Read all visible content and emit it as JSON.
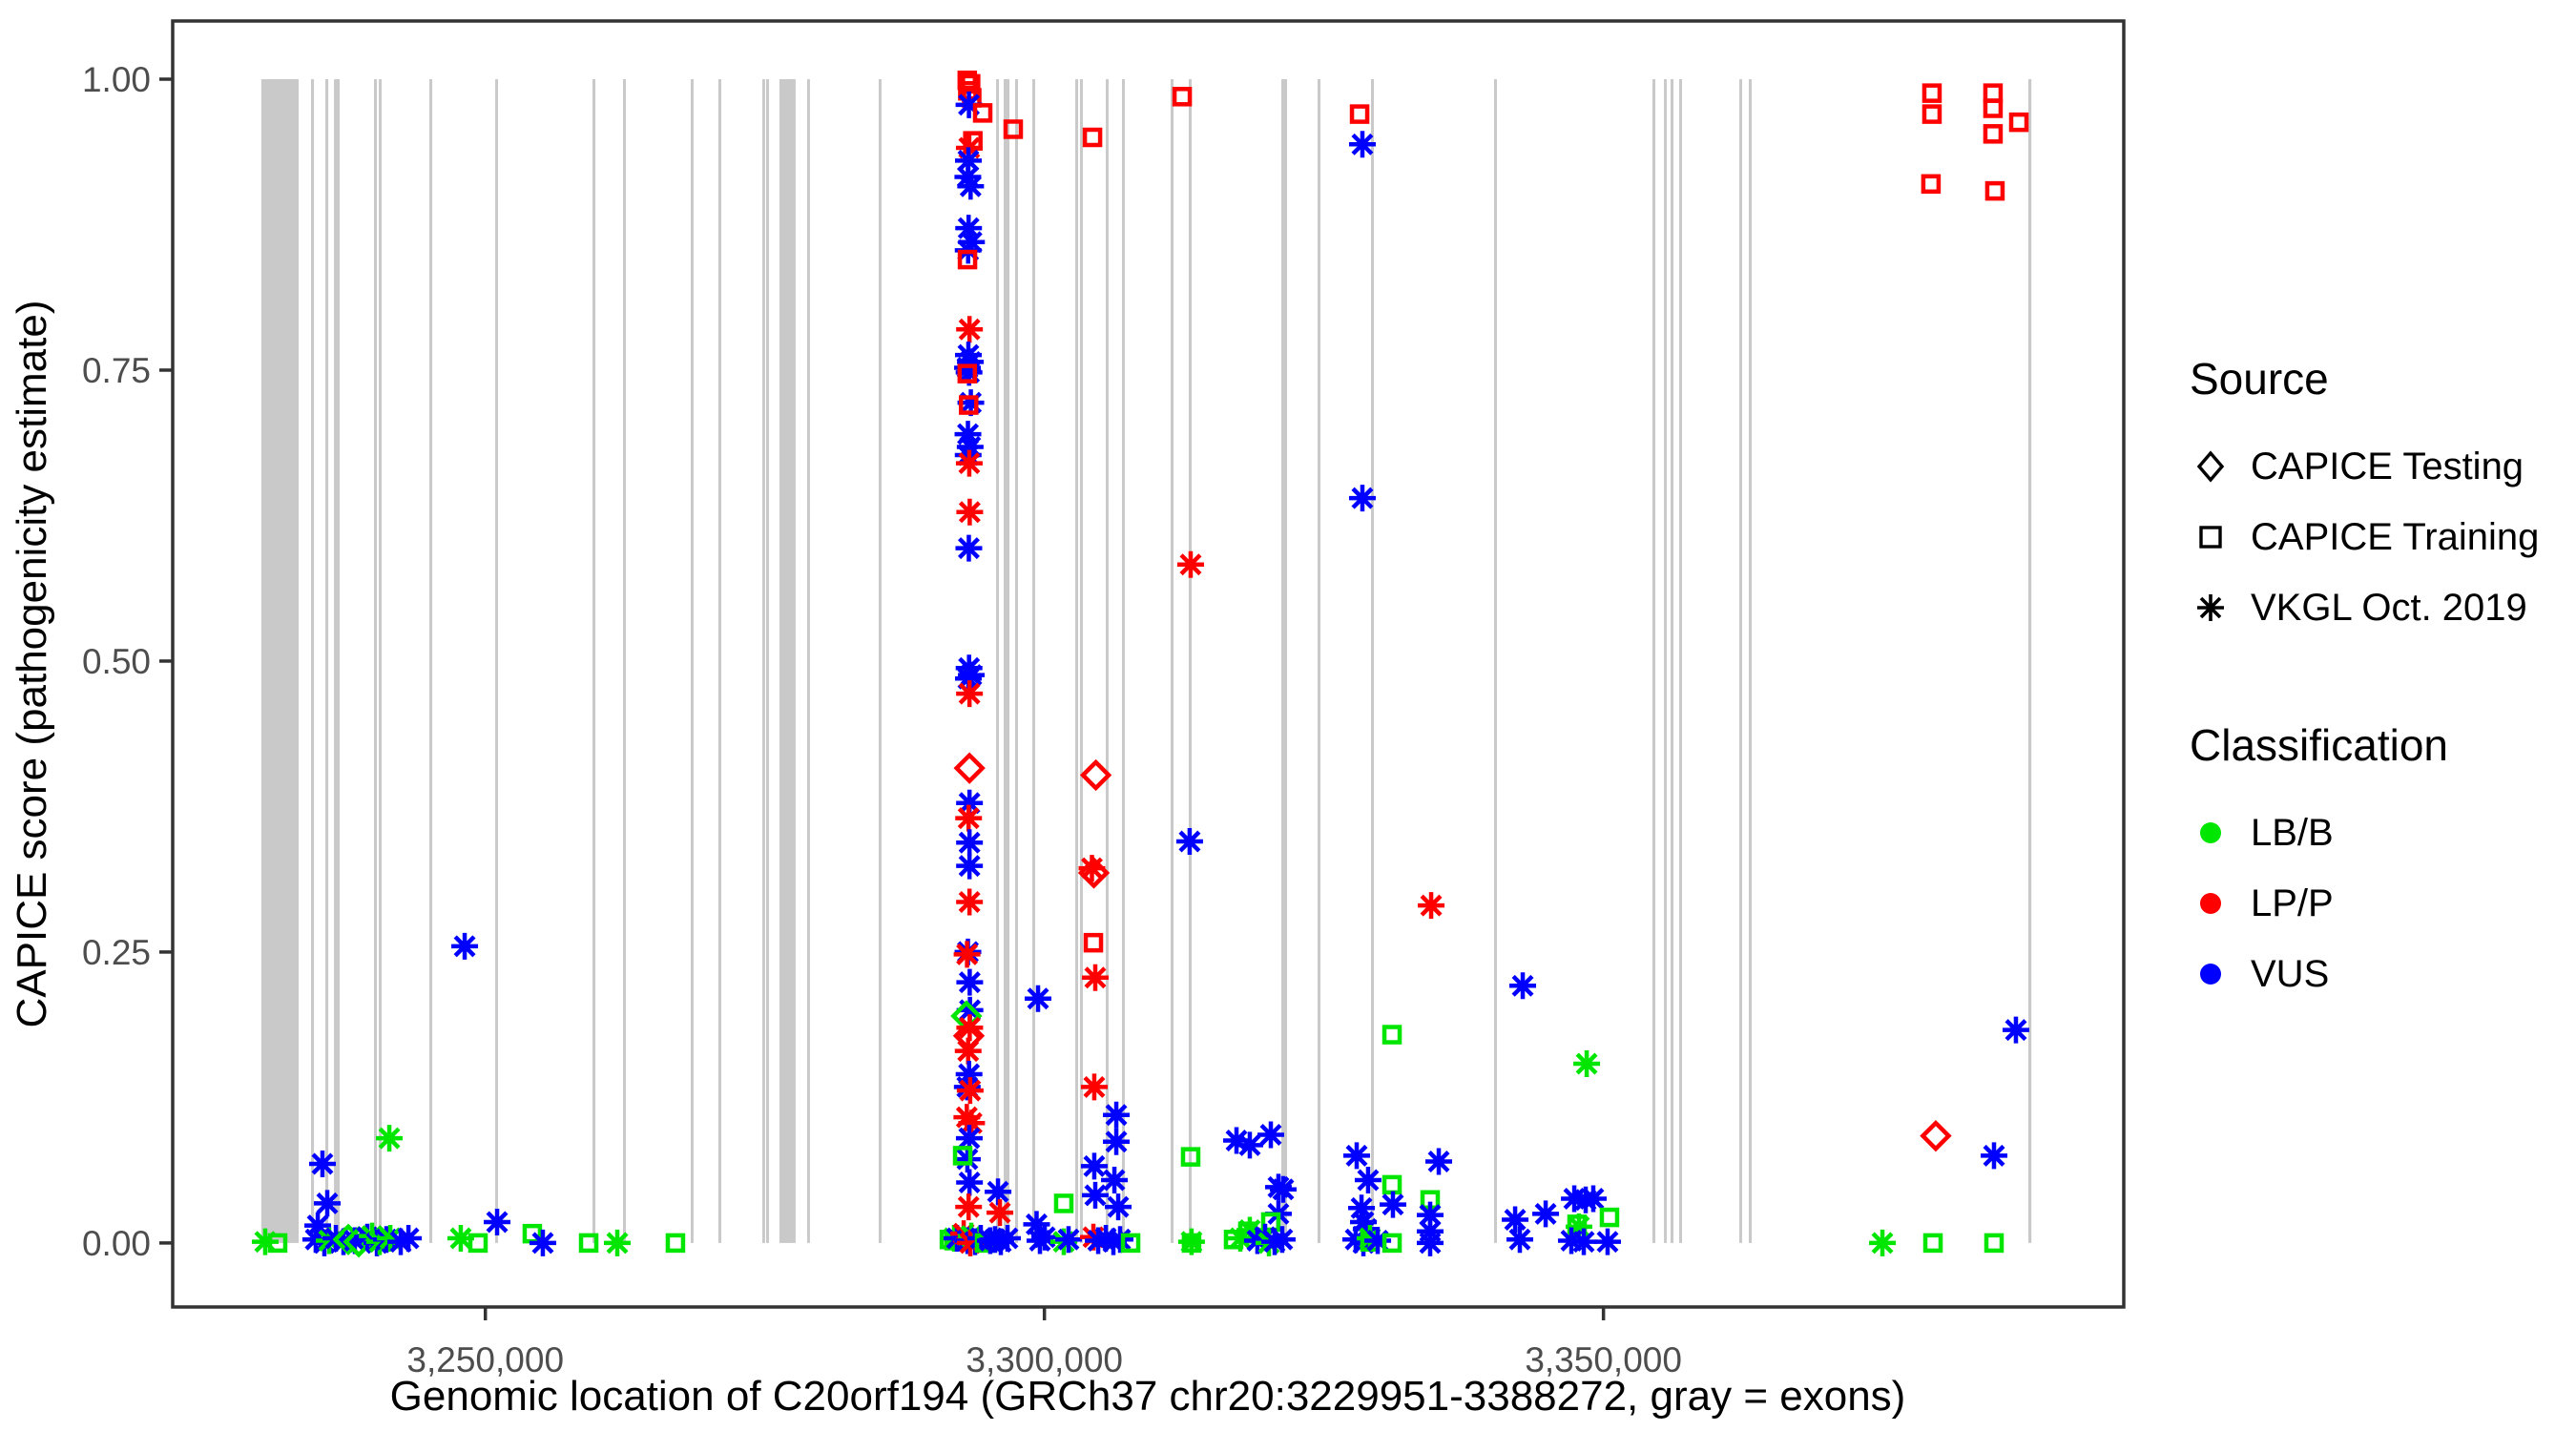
{
  "chart_data": {
    "type": "scatter",
    "x_axis": {
      "label": "Genomic location of C20orf194 (GRCh37 chr20:3229951-3388272, gray = exons)",
      "min": 3222035,
      "max": 3396535,
      "ticks": [
        {
          "value": 3250000,
          "label": "3,250,000"
        },
        {
          "value": 3300000,
          "label": "3,300,000"
        },
        {
          "value": 3350000,
          "label": "3,350,000"
        }
      ]
    },
    "y_axis": {
      "label": "CAPICE score (pathogenicity estimate)",
      "min": -0.055,
      "max": 1.05,
      "ticks": [
        {
          "value": 0.0,
          "label": "0.00"
        },
        {
          "value": 0.25,
          "label": "0.25"
        },
        {
          "value": 0.5,
          "label": "0.50"
        },
        {
          "value": 0.75,
          "label": "0.75"
        },
        {
          "value": 1.0,
          "label": "1.00"
        }
      ]
    },
    "grid": false,
    "legend_position": "right",
    "exon_note": "gray = exons",
    "exons": [
      [
        3229960,
        3233300
      ],
      [
        3234410,
        3234670
      ],
      [
        3235690,
        3235950
      ],
      [
        3236460,
        3236970
      ],
      [
        3240040,
        3240300
      ],
      [
        3240470,
        3240720
      ],
      [
        3244990,
        3245250
      ],
      [
        3250880,
        3251130
      ],
      [
        3259580,
        3259840
      ],
      [
        3262310,
        3262570
      ],
      [
        3268370,
        3268620
      ],
      [
        3270840,
        3271100
      ],
      [
        3274770,
        3275020
      ],
      [
        3275110,
        3275370
      ],
      [
        3276300,
        3277750
      ],
      [
        3278780,
        3279030
      ],
      [
        3285180,
        3285430
      ],
      [
        3295680,
        3295930
      ],
      [
        3296360,
        3296870
      ],
      [
        3297380,
        3297640
      ],
      [
        3298920,
        3299170
      ],
      [
        3302760,
        3303010
      ],
      [
        3303180,
        3303440
      ],
      [
        3305490,
        3305740
      ],
      [
        3306940,
        3307190
      ],
      [
        3311290,
        3311550
      ],
      [
        3312910,
        3313170
      ],
      [
        3321190,
        3321700
      ],
      [
        3324430,
        3324690
      ],
      [
        3329210,
        3329470
      ],
      [
        3340220,
        3340470
      ],
      [
        3354380,
        3354640
      ],
      [
        3355410,
        3355660
      ],
      [
        3356000,
        3356260
      ],
      [
        3356770,
        3357030
      ],
      [
        3362150,
        3362400
      ],
      [
        3363000,
        3363260
      ],
      [
        3388000,
        3388272
      ]
    ],
    "point_encoding": {
      "fields": [
        "genomic_position",
        "capice_score",
        "source",
        "classification"
      ],
      "source_codes": {
        "a": "VKGL Oct. 2019",
        "s": "CAPICE Training",
        "d": "CAPICE Testing"
      },
      "class_codes": {
        "B": "LB/B",
        "P": "LP/P",
        "V": "VUS"
      }
    },
    "points": [
      [
        3230310,
        0.001,
        "a",
        "B"
      ],
      [
        3231420,
        0.0,
        "s",
        "B"
      ],
      [
        3234830,
        0.003,
        "a",
        "V"
      ],
      [
        3235010,
        0.015,
        "a",
        "V"
      ],
      [
        3235430,
        0.068,
        "a",
        "V"
      ],
      [
        3235600,
        0.0,
        "a",
        "V"
      ],
      [
        3235860,
        0.034,
        "a",
        "V"
      ],
      [
        3236030,
        0.002,
        "a",
        "B"
      ],
      [
        3236630,
        0.004,
        "a",
        "V"
      ],
      [
        3237310,
        0.001,
        "a",
        "V"
      ],
      [
        3237740,
        0.003,
        "d",
        "B"
      ],
      [
        3238330,
        0.002,
        "a",
        "V"
      ],
      [
        3238680,
        0.001,
        "d",
        "B"
      ],
      [
        3239440,
        0.005,
        "a",
        "V"
      ],
      [
        3239870,
        0.006,
        "a",
        "B"
      ],
      [
        3240300,
        0.0,
        "a",
        "V"
      ],
      [
        3240550,
        0.001,
        "a",
        "B"
      ],
      [
        3241150,
        0.003,
        "a",
        "V"
      ],
      [
        3241410,
        0.09,
        "a",
        "B"
      ],
      [
        3241500,
        0.004,
        "a",
        "B"
      ],
      [
        3242430,
        0.001,
        "a",
        "V"
      ],
      [
        3243120,
        0.004,
        "a",
        "V"
      ],
      [
        3247800,
        0.004,
        "a",
        "B"
      ],
      [
        3248150,
        0.255,
        "a",
        "V"
      ],
      [
        3249340,
        0.0,
        "s",
        "B"
      ],
      [
        3251050,
        0.018,
        "a",
        "V"
      ],
      [
        3254200,
        0.008,
        "s",
        "B"
      ],
      [
        3255140,
        0.0,
        "a",
        "V"
      ],
      [
        3259240,
        0.0,
        "s",
        "B"
      ],
      [
        3261800,
        0.0,
        "a",
        "B"
      ],
      [
        3267000,
        0.0,
        "s",
        "B"
      ],
      [
        3291920,
        0.002,
        "s",
        "B"
      ],
      [
        3291920,
        0.004,
        "a",
        "B"
      ],
      [
        3293100,
        0.999,
        "s",
        "P"
      ],
      [
        3293400,
        0.996,
        "s",
        "P"
      ],
      [
        3293150,
        0.99,
        "s",
        "P"
      ],
      [
        3293500,
        0.984,
        "s",
        "P"
      ],
      [
        3293250,
        0.978,
        "a",
        "V"
      ],
      [
        3294480,
        0.971,
        "s",
        "P"
      ],
      [
        3297210,
        0.957,
        "s",
        "P"
      ],
      [
        3293600,
        0.947,
        "s",
        "P"
      ],
      [
        3293280,
        0.941,
        "a",
        "P"
      ],
      [
        3293200,
        0.93,
        "a",
        "V"
      ],
      [
        3293150,
        0.916,
        "a",
        "V"
      ],
      [
        3293400,
        0.908,
        "a",
        "V"
      ],
      [
        3293220,
        0.872,
        "a",
        "V"
      ],
      [
        3293480,
        0.86,
        "a",
        "V"
      ],
      [
        3293180,
        0.853,
        "a",
        "V"
      ],
      [
        3293120,
        0.845,
        "s",
        "P"
      ],
      [
        3293300,
        0.785,
        "a",
        "P"
      ],
      [
        3293200,
        0.763,
        "a",
        "V"
      ],
      [
        3293380,
        0.757,
        "a",
        "V"
      ],
      [
        3293120,
        0.752,
        "a",
        "V"
      ],
      [
        3293260,
        0.748,
        "a",
        "V"
      ],
      [
        3293100,
        0.747,
        "s",
        "P"
      ],
      [
        3293420,
        0.722,
        "a",
        "V"
      ],
      [
        3293220,
        0.72,
        "s",
        "P"
      ],
      [
        3293160,
        0.695,
        "a",
        "V"
      ],
      [
        3293360,
        0.684,
        "a",
        "V"
      ],
      [
        3293180,
        0.677,
        "a",
        "V"
      ],
      [
        3293280,
        0.67,
        "a",
        "P"
      ],
      [
        3293320,
        0.628,
        "a",
        "P"
      ],
      [
        3293240,
        0.597,
        "a",
        "V"
      ],
      [
        3293260,
        0.494,
        "a",
        "V"
      ],
      [
        3293460,
        0.488,
        "a",
        "V"
      ],
      [
        3293200,
        0.485,
        "a",
        "V"
      ],
      [
        3293300,
        0.472,
        "a",
        "P"
      ],
      [
        3293300,
        0.408,
        "d",
        "P"
      ],
      [
        3293300,
        0.378,
        "a",
        "V"
      ],
      [
        3293220,
        0.365,
        "a",
        "P"
      ],
      [
        3293300,
        0.344,
        "a",
        "V"
      ],
      [
        3293300,
        0.324,
        "a",
        "V"
      ],
      [
        3293300,
        0.293,
        "a",
        "P"
      ],
      [
        3293160,
        0.25,
        "a",
        "V"
      ],
      [
        3293080,
        0.248,
        "a",
        "P"
      ],
      [
        3293320,
        0.224,
        "a",
        "V"
      ],
      [
        3293340,
        0.2,
        "a",
        "V"
      ],
      [
        3293020,
        0.195,
        "d",
        "B"
      ],
      [
        3293320,
        0.185,
        "a",
        "P"
      ],
      [
        3293240,
        0.178,
        "d",
        "P"
      ],
      [
        3293180,
        0.165,
        "a",
        "P"
      ],
      [
        3293260,
        0.145,
        "a",
        "V"
      ],
      [
        3293100,
        0.134,
        "a",
        "V"
      ],
      [
        3293360,
        0.131,
        "a",
        "P"
      ],
      [
        3293060,
        0.108,
        "a",
        "P"
      ],
      [
        3293490,
        0.103,
        "a",
        "P"
      ],
      [
        3293280,
        0.09,
        "a",
        "V"
      ],
      [
        3293110,
        0.072,
        "a",
        "V"
      ],
      [
        3292690,
        0.075,
        "s",
        "B"
      ],
      [
        3293300,
        0.052,
        "a",
        "V"
      ],
      [
        3293220,
        0.031,
        "a",
        "P"
      ],
      [
        3291500,
        0.003,
        "s",
        "B"
      ],
      [
        3292180,
        0.004,
        "a",
        "V"
      ],
      [
        3292780,
        0.008,
        "a",
        "P"
      ],
      [
        3293120,
        0.002,
        "a",
        "V"
      ],
      [
        3293460,
        0.006,
        "a",
        "B"
      ],
      [
        3293800,
        0.001,
        "a",
        "V"
      ],
      [
        3293370,
        0.0,
        "a",
        "P"
      ],
      [
        3294310,
        0.004,
        "a",
        "V"
      ],
      [
        3294650,
        0.0,
        "s",
        "B"
      ],
      [
        3295160,
        0.002,
        "a",
        "V"
      ],
      [
        3295590,
        0.003,
        "a",
        "V"
      ],
      [
        3295850,
        0.044,
        "a",
        "V"
      ],
      [
        3296020,
        0.026,
        "a",
        "P"
      ],
      [
        3296100,
        0.001,
        "a",
        "V"
      ],
      [
        3296700,
        0.004,
        "a",
        "V"
      ],
      [
        3299300,
        0.016,
        "a",
        "V"
      ],
      [
        3299430,
        0.21,
        "a",
        "V"
      ],
      [
        3299600,
        0.002,
        "a",
        "V"
      ],
      [
        3300030,
        0.005,
        "a",
        "V"
      ],
      [
        3301730,
        0.034,
        "s",
        "B"
      ],
      [
        3301730,
        0.001,
        "a",
        "B"
      ],
      [
        3302160,
        0.003,
        "a",
        "V"
      ],
      [
        3304300,
        0.95,
        "s",
        "P"
      ],
      [
        3304600,
        0.402,
        "d",
        "P"
      ],
      [
        3304250,
        0.322,
        "a",
        "P"
      ],
      [
        3304420,
        0.318,
        "d",
        "P"
      ],
      [
        3304380,
        0.258,
        "s",
        "P"
      ],
      [
        3304550,
        0.228,
        "a",
        "P"
      ],
      [
        3304460,
        0.134,
        "a",
        "P"
      ],
      [
        3306430,
        0.11,
        "a",
        "V"
      ],
      [
        3306430,
        0.087,
        "a",
        "V"
      ],
      [
        3304460,
        0.066,
        "a",
        "V"
      ],
      [
        3306260,
        0.054,
        "a",
        "V"
      ],
      [
        3304550,
        0.041,
        "a",
        "V"
      ],
      [
        3306600,
        0.031,
        "a",
        "V"
      ],
      [
        3304380,
        0.005,
        "a",
        "P"
      ],
      [
        3304810,
        0.002,
        "a",
        "V"
      ],
      [
        3305490,
        0.004,
        "a",
        "V"
      ],
      [
        3306170,
        0.001,
        "a",
        "V"
      ],
      [
        3306770,
        0.003,
        "a",
        "V"
      ],
      [
        3307710,
        0.0,
        "s",
        "B"
      ],
      [
        3312320,
        0.985,
        "s",
        "P"
      ],
      [
        3312990,
        0.345,
        "a",
        "V"
      ],
      [
        3313080,
        0.583,
        "a",
        "P"
      ],
      [
        3313080,
        0.074,
        "s",
        "B"
      ],
      [
        3313160,
        0.001,
        "a",
        "B"
      ],
      [
        3313160,
        0.0,
        "s",
        "B"
      ],
      [
        3317180,
        0.088,
        "a",
        "V"
      ],
      [
        3318370,
        0.084,
        "a",
        "V"
      ],
      [
        3320250,
        0.093,
        "a",
        "V"
      ],
      [
        3320930,
        0.048,
        "a",
        "V"
      ],
      [
        3321360,
        0.046,
        "a",
        "V"
      ],
      [
        3320930,
        0.025,
        "a",
        "V"
      ],
      [
        3316920,
        0.003,
        "s",
        "B"
      ],
      [
        3318200,
        0.01,
        "s",
        "B"
      ],
      [
        3318370,
        0.011,
        "a",
        "B"
      ],
      [
        3320250,
        0.018,
        "s",
        "B"
      ],
      [
        3317520,
        0.004,
        "a",
        "B"
      ],
      [
        3319050,
        0.002,
        "a",
        "V"
      ],
      [
        3319740,
        0.005,
        "a",
        "V"
      ],
      [
        3320080,
        0.0,
        "a",
        "B"
      ],
      [
        3320590,
        0.001,
        "a",
        "V"
      ],
      [
        3321270,
        0.003,
        "a",
        "V"
      ],
      [
        3328190,
        0.97,
        "s",
        "P"
      ],
      [
        3328440,
        0.944,
        "a",
        "V"
      ],
      [
        3328440,
        0.64,
        "a",
        "V"
      ],
      [
        3327930,
        0.075,
        "a",
        "V"
      ],
      [
        3328950,
        0.054,
        "a",
        "V"
      ],
      [
        3331090,
        0.179,
        "s",
        "B"
      ],
      [
        3331090,
        0.05,
        "s",
        "B"
      ],
      [
        3331170,
        0.033,
        "a",
        "V"
      ],
      [
        3328360,
        0.03,
        "a",
        "V"
      ],
      [
        3328530,
        0.018,
        "a",
        "V"
      ],
      [
        3328780,
        0.012,
        "a",
        "V"
      ],
      [
        3327840,
        0.003,
        "a",
        "V"
      ],
      [
        3328530,
        0.0,
        "a",
        "V"
      ],
      [
        3329120,
        0.004,
        "a",
        "B"
      ],
      [
        3329120,
        0.001,
        "s",
        "B"
      ],
      [
        3329810,
        0.002,
        "a",
        "V"
      ],
      [
        3331090,
        0.0,
        "s",
        "B"
      ],
      [
        3334590,
        0.29,
        "a",
        "P"
      ],
      [
        3335270,
        0.07,
        "a",
        "V"
      ],
      [
        3334500,
        0.037,
        "s",
        "B"
      ],
      [
        3334500,
        0.024,
        "a",
        "V"
      ],
      [
        3334500,
        0.01,
        "a",
        "V"
      ],
      [
        3334500,
        0.0,
        "a",
        "V"
      ],
      [
        3342780,
        0.221,
        "a",
        "V"
      ],
      [
        3342100,
        0.02,
        "a",
        "V"
      ],
      [
        3342520,
        0.003,
        "a",
        "V"
      ],
      [
        3344830,
        0.025,
        "a",
        "V"
      ],
      [
        3347390,
        0.038,
        "a",
        "V"
      ],
      [
        3348410,
        0.037,
        "a",
        "V"
      ],
      [
        3349090,
        0.038,
        "a",
        "V"
      ],
      [
        3347640,
        0.016,
        "s",
        "B"
      ],
      [
        3347810,
        0.014,
        "a",
        "B"
      ],
      [
        3348500,
        0.154,
        "a",
        "B"
      ],
      [
        3350540,
        0.022,
        "s",
        "B"
      ],
      [
        3347130,
        0.002,
        "a",
        "V"
      ],
      [
        3348240,
        0.001,
        "a",
        "V"
      ],
      [
        3350370,
        0.001,
        "a",
        "V"
      ],
      [
        3374950,
        0.0,
        "a",
        "B"
      ],
      [
        3379470,
        0.0,
        "s",
        "B"
      ],
      [
        3384930,
        0.0,
        "s",
        "B"
      ],
      [
        3386890,
        0.183,
        "a",
        "V"
      ],
      [
        3379720,
        0.092,
        "d",
        "P"
      ],
      [
        3384930,
        0.075,
        "a",
        "V"
      ],
      [
        3379380,
        0.988,
        "s",
        "P"
      ],
      [
        3379380,
        0.97,
        "s",
        "P"
      ],
      [
        3384840,
        0.988,
        "s",
        "P"
      ],
      [
        3384840,
        0.975,
        "s",
        "P"
      ],
      [
        3387150,
        0.963,
        "s",
        "P"
      ],
      [
        3384840,
        0.953,
        "s",
        "P"
      ],
      [
        3379290,
        0.91,
        "s",
        "P"
      ],
      [
        3385010,
        0.904,
        "s",
        "P"
      ]
    ]
  },
  "legend": {
    "source": {
      "title": "Source",
      "items": [
        {
          "label": "CAPICE Testing",
          "shape": "diamond"
        },
        {
          "label": "CAPICE Training",
          "shape": "square"
        },
        {
          "label": "VKGL Oct. 2019",
          "shape": "asterisk"
        }
      ]
    },
    "classification": {
      "title": "Classification",
      "items": [
        {
          "label": "LB/B",
          "color": "#00e600"
        },
        {
          "label": "LP/P",
          "color": "#ff0000"
        },
        {
          "label": "VUS",
          "color": "#0000ff"
        }
      ]
    }
  },
  "colors": {
    "LB/B": "#00e600",
    "LP/P": "#ff0000",
    "VUS": "#0000ff",
    "exon": "#c9c9c9",
    "panel_border": "#333333",
    "tick_text": "#4d4d4d"
  }
}
